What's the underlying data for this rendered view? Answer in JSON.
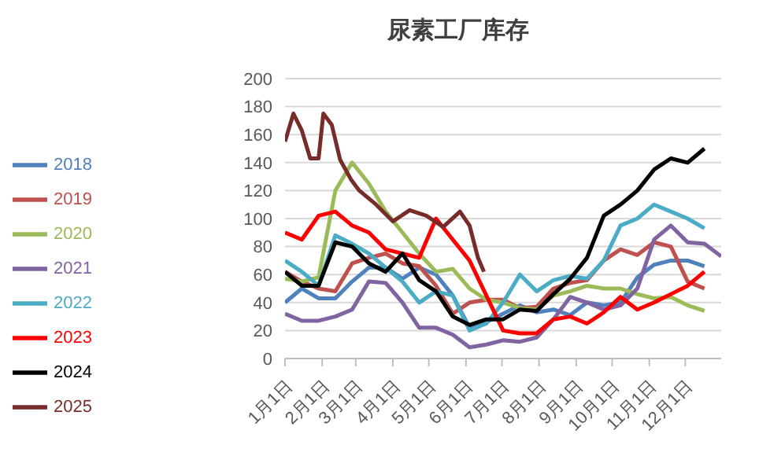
{
  "chart_data": {
    "type": "line",
    "title": "尿素工厂库存",
    "x": [
      "--01-01",
      "--01-15",
      "--01-29",
      "--02-12",
      "--02-26",
      "--03-12",
      "--03-26",
      "--04-09",
      "--04-23",
      "--05-07",
      "--05-21",
      "--06-04",
      "--06-18",
      "--07-02",
      "--07-16",
      "--07-30",
      "--08-13",
      "--08-27",
      "--09-10",
      "--09-24",
      "--10-08",
      "--10-22",
      "--11-05",
      "--11-19",
      "--12-03",
      "--12-17",
      "--12-31"
    ],
    "series": [
      {
        "name": "2018",
        "color": "#4f81bd",
        "values": [
          40,
          50,
          43,
          43,
          55,
          65,
          65,
          57,
          65,
          60,
          45,
          22,
          26,
          32,
          38,
          33,
          35,
          31,
          40,
          38,
          40,
          58,
          67,
          70,
          70,
          66,
          null
        ]
      },
      {
        "name": "2019",
        "color": "#c0504d",
        "values": [
          62,
          55,
          50,
          48,
          68,
          72,
          75,
          68,
          66,
          52,
          32,
          40,
          42,
          42,
          36,
          37,
          50,
          54,
          56,
          70,
          78,
          74,
          83,
          80,
          55,
          50,
          null
        ]
      },
      {
        "name": "2020",
        "color": "#9bbb59",
        "values": [
          57,
          55,
          58,
          120,
          140,
          125,
          105,
          90,
          75,
          62,
          64,
          50,
          42,
          40,
          36,
          35,
          45,
          48,
          52,
          50,
          50,
          46,
          43,
          44,
          38,
          34,
          null
        ]
      },
      {
        "name": "2021",
        "color": "#8064a2",
        "values": [
          32,
          27,
          27,
          30,
          35,
          55,
          54,
          40,
          22,
          22,
          17,
          8,
          10,
          13,
          12,
          15,
          28,
          44,
          40,
          35,
          38,
          50,
          85,
          95,
          83,
          82,
          73
        ]
      },
      {
        "name": "2022",
        "color": "#4bacc6",
        "values": [
          70,
          62,
          52,
          88,
          82,
          75,
          65,
          55,
          40,
          48,
          45,
          20,
          25,
          40,
          60,
          48,
          56,
          59,
          57,
          70,
          95,
          100,
          110,
          105,
          100,
          93,
          null
        ]
      },
      {
        "name": "2023",
        "color": "#ff0000",
        "values": [
          90,
          85,
          102,
          105,
          95,
          90,
          78,
          75,
          72,
          100,
          85,
          70,
          45,
          20,
          18,
          18,
          28,
          30,
          25,
          33,
          44,
          35,
          40,
          46,
          52,
          62,
          null
        ]
      },
      {
        "name": "2024",
        "color": "#000000",
        "values": [
          62,
          52,
          52,
          83,
          80,
          68,
          62,
          75,
          56,
          48,
          30,
          24,
          28,
          28,
          35,
          34,
          46,
          57,
          72,
          102,
          110,
          120,
          135,
          143,
          140,
          150,
          null
        ]
      },
      {
        "name": "2025",
        "color": "#772c2a",
        "x": [
          "--01-01",
          "--01-08",
          "--01-15",
          "--01-22",
          "--01-29",
          "--02-02",
          "--02-09",
          "--02-16",
          "--02-25",
          "--03-04",
          "--03-18",
          "--04-01",
          "--04-15",
          "--04-29",
          "--05-13",
          "--05-27",
          "--06-04",
          "--06-11",
          "--06-16"
        ],
        "values": [
          155,
          175,
          163,
          143,
          143,
          175,
          167,
          142,
          128,
          120,
          110,
          98,
          106,
          102,
          94,
          105,
          95,
          72,
          62
        ]
      }
    ],
    "xlim": [
      "--01-01",
      "--12-31"
    ],
    "xticks": [
      {
        "value": "--01-01",
        "label": "1月1日"
      },
      {
        "value": "--02-01",
        "label": "2月1日"
      },
      {
        "value": "--03-01",
        "label": "3月1日"
      },
      {
        "value": "--04-01",
        "label": "4月1日"
      },
      {
        "value": "--05-01",
        "label": "5月1日"
      },
      {
        "value": "--06-01",
        "label": "6月1日"
      },
      {
        "value": "--07-01",
        "label": "7月1日"
      },
      {
        "value": "--08-01",
        "label": "8月1日"
      },
      {
        "value": "--09-01",
        "label": "9月1日"
      },
      {
        "value": "--10-01",
        "label": "10月1日"
      },
      {
        "value": "--11-01",
        "label": "11月1日"
      },
      {
        "value": "--12-01",
        "label": "12月1日"
      }
    ],
    "ylim": [
      0,
      200
    ],
    "yticks": [
      0,
      20,
      40,
      60,
      80,
      100,
      120,
      140,
      160,
      180,
      200
    ],
    "grid": "y",
    "legend": "left",
    "marker": "none",
    "line_style": "solid"
  }
}
